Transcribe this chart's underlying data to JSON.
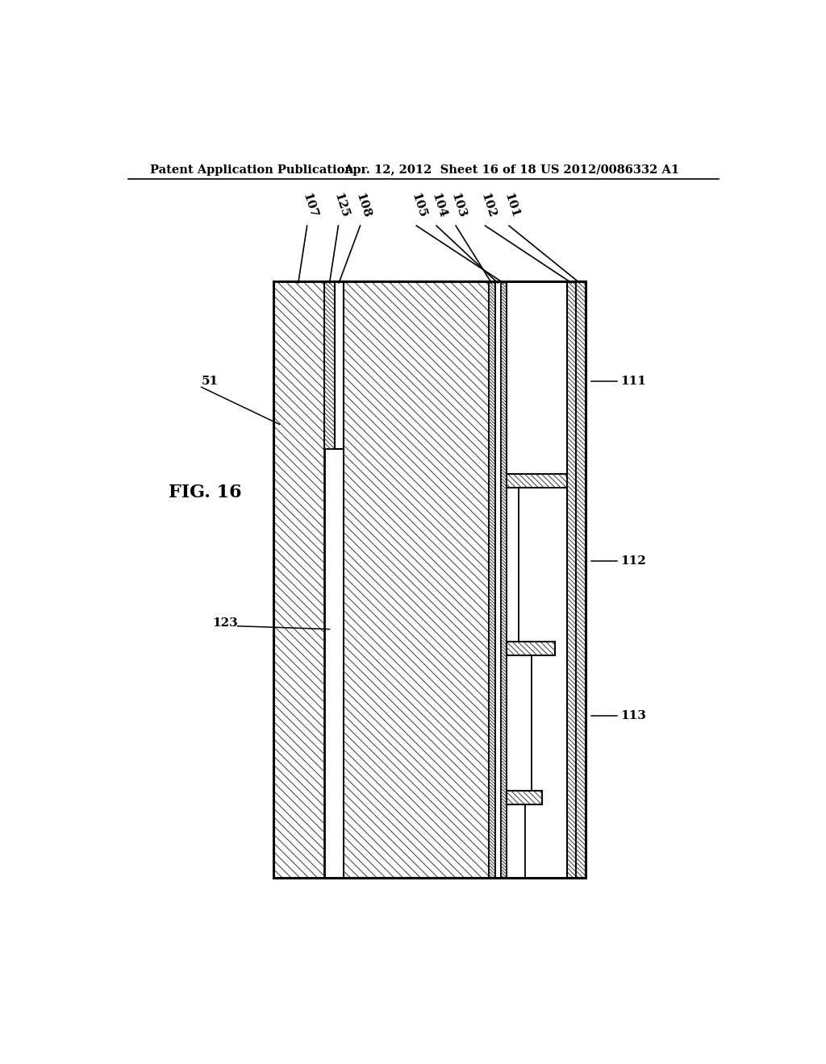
{
  "header_left": "Patent Application Publication",
  "header_mid": "Apr. 12, 2012  Sheet 16 of 18",
  "header_right": "US 2012/0086332 A1",
  "fig_label": "FIG. 16",
  "bg_color": "#ffffff"
}
